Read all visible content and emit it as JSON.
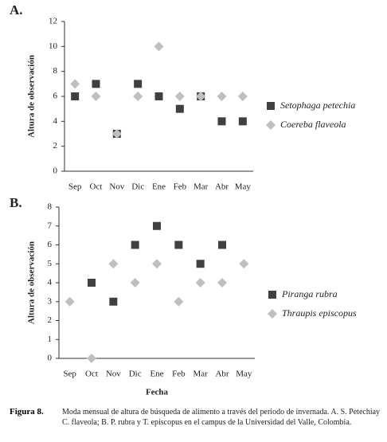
{
  "chart_data": [
    {
      "type": "scatter",
      "panel": "A.",
      "y_label": "Altura de observación",
      "categories": [
        "Sep",
        "Oct",
        "Nov",
        "Dic",
        "Ene",
        "Feb",
        "Mar",
        "Abr",
        "May"
      ],
      "series": [
        {
          "name": "Setophaga petechia",
          "color": "#404040",
          "marker": "square",
          "values": [
            6,
            7,
            3,
            7,
            6,
            5,
            6,
            4,
            4
          ]
        },
        {
          "name": "Coereba flaveola",
          "color": "#bfbfbf",
          "marker": "diamond",
          "values": [
            7,
            6,
            3,
            6,
            10,
            6,
            6,
            6,
            6
          ]
        }
      ],
      "ylim": [
        0,
        12
      ],
      "yticks": [
        0,
        2,
        4,
        6,
        8,
        10,
        12
      ],
      "grid": false
    },
    {
      "type": "scatter",
      "panel": "B.",
      "y_label": "Altura de observación",
      "x_label": "Fecha",
      "categories": [
        "Sep",
        "Oct",
        "Nov",
        "Dic",
        "Ene",
        "Feb",
        "Mar",
        "Abr",
        "May"
      ],
      "series": [
        {
          "name": "Piranga rubra",
          "color": "#404040",
          "marker": "square",
          "values": [
            null,
            4,
            3,
            6,
            7,
            6,
            5,
            6,
            null
          ]
        },
        {
          "name": "Thraupis episcopus",
          "color": "#bfbfbf",
          "marker": "diamond",
          "values": [
            3,
            0,
            5,
            4,
            5,
            3,
            4,
            4,
            5
          ]
        }
      ],
      "ylim": [
        0,
        8
      ],
      "yticks": [
        0,
        1,
        2,
        3,
        4,
        5,
        6,
        7,
        8
      ],
      "grid": false
    }
  ],
  "caption": {
    "label": "Figura 8.",
    "text": "Moda mensual de altura de búsqueda de alimento a través del periodo de invernada. A. S. Petechiay C. flaveola; B. P. rubra y T. episcopus en el campus de la Universidad del Valle, Colombia."
  }
}
